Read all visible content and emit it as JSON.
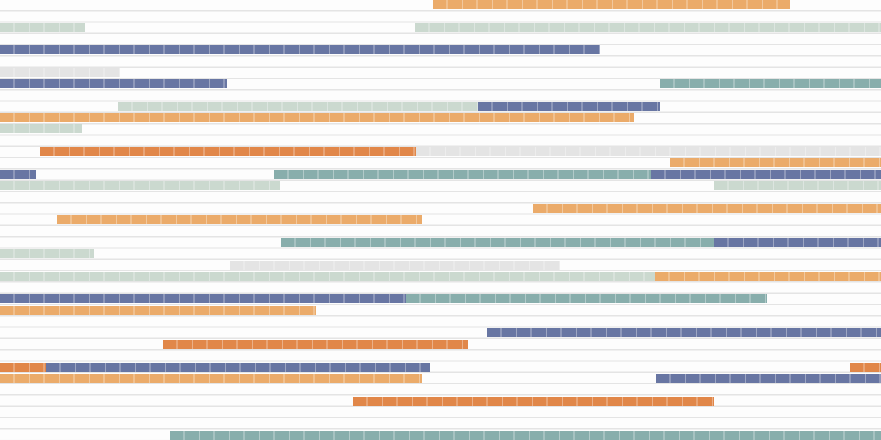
{
  "palette": {
    "orange": "#eaa55e",
    "dark_orange": "#df7d3a",
    "blue": "#5c6b9c",
    "teal": "#7fa8a6",
    "light_green": "#c7d6cc",
    "light_gray": "#e2e2e2"
  }
}
